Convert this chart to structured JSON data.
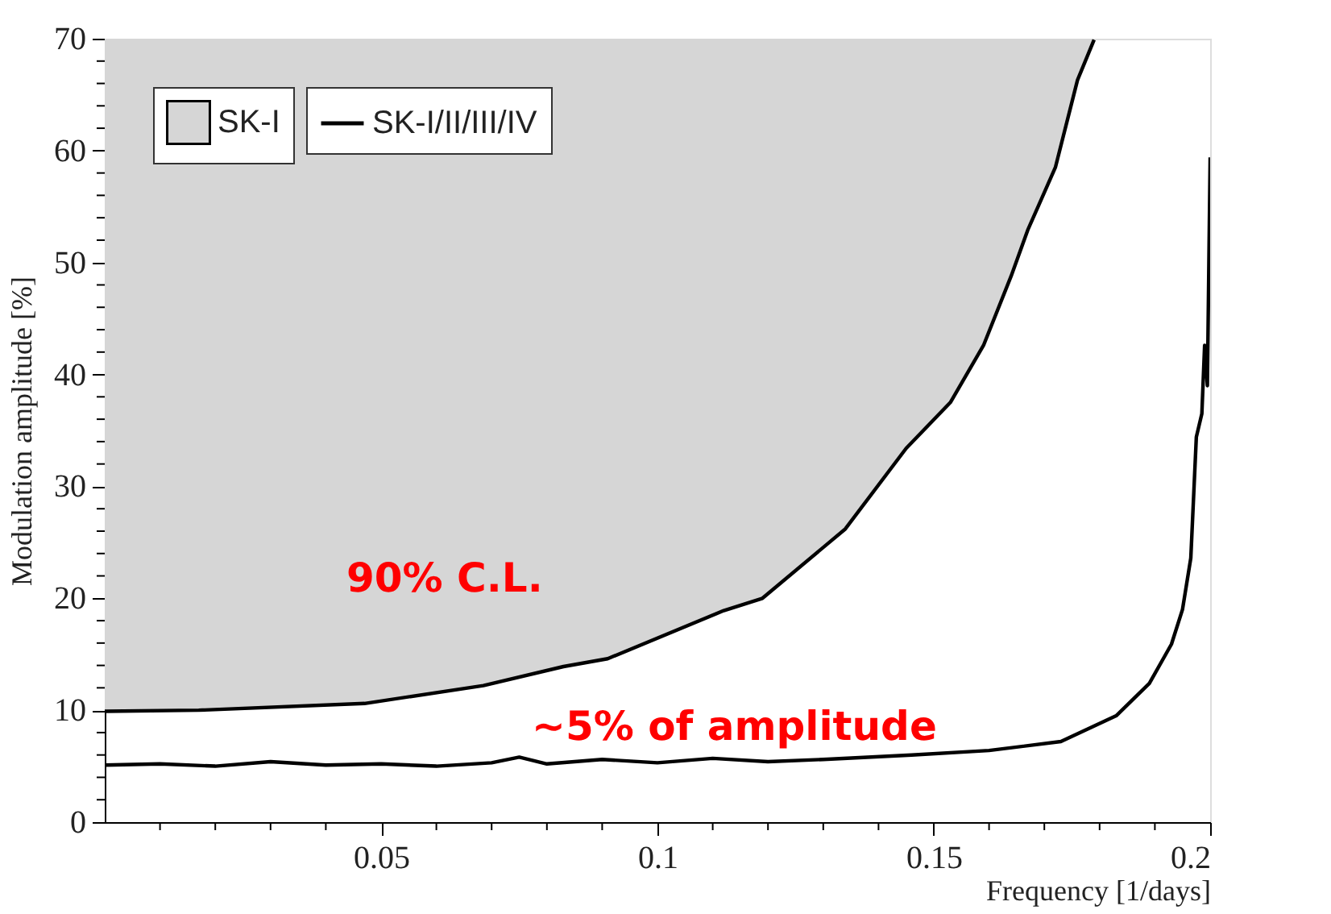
{
  "chart_data": {
    "type": "line",
    "xlabel": "Frequency [1/days]",
    "ylabel": "Modulation amplitude [%]",
    "xlim": [
      0,
      0.2
    ],
    "ylim": [
      0,
      70
    ],
    "xticks": [
      {
        "value": 0.01,
        "label": null
      },
      {
        "value": 0.02,
        "label": null
      },
      {
        "value": 0.03,
        "label": null
      },
      {
        "value": 0.04,
        "label": null
      },
      0.05,
      {
        "value": 0.06,
        "label": null
      },
      {
        "value": 0.07,
        "label": null
      },
      {
        "value": 0.08,
        "label": null
      },
      {
        "value": 0.09,
        "label": null
      },
      0.1,
      {
        "value": 0.11,
        "label": null
      },
      {
        "value": 0.12,
        "label": null
      },
      {
        "value": 0.13,
        "label": null
      },
      {
        "value": 0.14,
        "label": null
      },
      0.15,
      {
        "value": 0.16,
        "label": null
      },
      {
        "value": 0.17,
        "label": null
      },
      {
        "value": 0.18,
        "label": null
      },
      {
        "value": 0.19,
        "label": null
      },
      0.2
    ],
    "yticks": [
      0,
      {
        "value": 2,
        "label": null
      },
      {
        "value": 4,
        "label": null
      },
      {
        "value": 6,
        "label": null
      },
      {
        "value": 8,
        "label": null
      },
      10,
      {
        "value": 12,
        "label": null
      },
      {
        "value": 14,
        "label": null
      },
      {
        "value": 16,
        "label": null
      },
      {
        "value": 18,
        "label": null
      },
      20,
      {
        "value": 22,
        "label": null
      },
      {
        "value": 24,
        "label": null
      },
      {
        "value": 26,
        "label": null
      },
      {
        "value": 28,
        "label": null
      },
      30,
      {
        "value": 32,
        "label": null
      },
      {
        "value": 34,
        "label": null
      },
      {
        "value": 36,
        "label": null
      },
      {
        "value": 38,
        "label": null
      },
      40,
      {
        "value": 42,
        "label": null
      },
      {
        "value": 44,
        "label": null
      },
      {
        "value": 46,
        "label": null
      },
      {
        "value": 48,
        "label": null
      },
      50,
      {
        "value": 52,
        "label": null
      },
      {
        "value": 54,
        "label": null
      },
      {
        "value": 56,
        "label": null
      },
      {
        "value": 58,
        "label": null
      },
      60,
      {
        "value": 62,
        "label": null
      },
      {
        "value": 64,
        "label": null
      },
      {
        "value": 66,
        "label": null
      },
      {
        "value": 68,
        "label": null
      },
      70
    ],
    "grid": false,
    "legend": "top left",
    "series": [
      {
        "name": "SK-I",
        "color": "#000000",
        "x": [
          0,
          0.017,
          0.047,
          0.0685,
          0.083,
          0.091,
          0.112,
          0.119,
          0.134,
          0.145,
          0.153,
          0.159,
          0.164,
          0.167,
          0.172,
          0.176,
          0.179
        ],
        "values": [
          9.9,
          10,
          10.6,
          12.2,
          13.9,
          14.6,
          18.9,
          20,
          26.2,
          33.4,
          37.5,
          42.6,
          48.8,
          52.9,
          58.5,
          66.3,
          69.9
        ],
        "lower": [
          9.9,
          10,
          10.6,
          12.2,
          13.9,
          14.6,
          18.9,
          20,
          26.2,
          33.4,
          37.5,
          42.6,
          48.8,
          52.9,
          58.5,
          66.3,
          69.9
        ],
        "upper": [
          70,
          70,
          70,
          70,
          70,
          70,
          70,
          70,
          70,
          70,
          70,
          70,
          70,
          70,
          70,
          70,
          70
        ]
      },
      {
        "name": "SK-I/II/III/IV",
        "type": "line",
        "color": "#000000",
        "x": [
          0,
          0.01,
          0.02,
          0.03,
          0.04,
          0.05,
          0.06,
          0.07,
          0.075,
          0.08,
          0.09,
          0.1,
          0.11,
          0.12,
          0.13,
          0.146,
          0.16,
          0.173,
          0.183,
          0.189,
          0.193,
          0.195,
          0.1965,
          0.1975,
          0.1985,
          0.199,
          0.1995,
          0.2
        ],
        "values": [
          5.1,
          5.2,
          5.0,
          5.4,
          5.1,
          5.2,
          5.0,
          5.3,
          5.8,
          5.2,
          5.6,
          5.3,
          5.7,
          5.4,
          5.6,
          6.0,
          6.4,
          7.2,
          9.5,
          12.4,
          15.9,
          19.0,
          23.6,
          34.4,
          36.5,
          42.6,
          39,
          59.4
        ]
      }
    ],
    "annotations": [
      "90% C.L.",
      "~5% of amplitude"
    ]
  }
}
